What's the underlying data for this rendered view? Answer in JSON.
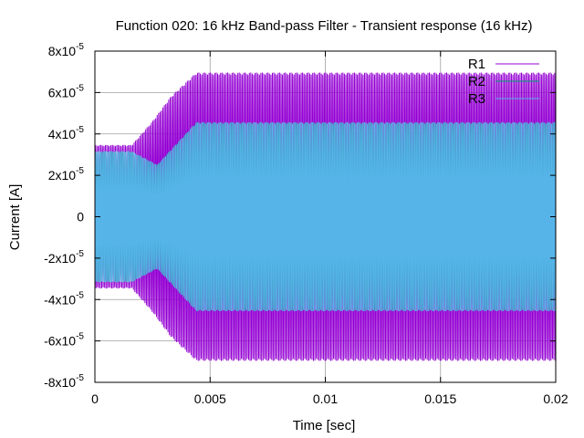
{
  "chart_data": {
    "type": "line",
    "title": "Function 020: 16 kHz Band-pass Filter - Transient response (16 kHz)",
    "xlabel": "Time [sec]",
    "ylabel": "Current [A]",
    "xlim": [
      0,
      0.02
    ],
    "ylim": [
      -8e-05,
      8e-05
    ],
    "x_ticks": [
      0,
      0.005,
      0.01,
      0.015,
      0.02
    ],
    "x_tick_labels": [
      "0",
      "0.005",
      "0.01",
      "0.015",
      "0.02"
    ],
    "y_ticks": [
      {
        "value": 8e-05,
        "mantissa": "8x10",
        "exp": "-5"
      },
      {
        "value": 6e-05,
        "mantissa": "6x10",
        "exp": "-5"
      },
      {
        "value": 4e-05,
        "mantissa": "4x10",
        "exp": "-5"
      },
      {
        "value": 2e-05,
        "mantissa": "2x10",
        "exp": "-5"
      },
      {
        "value": 0,
        "mantissa": "0",
        "exp": ""
      },
      {
        "value": -2e-05,
        "mantissa": "-2x10",
        "exp": "-5"
      },
      {
        "value": -4e-05,
        "mantissa": "-4x10",
        "exp": "-5"
      },
      {
        "value": -6e-05,
        "mantissa": "-6x10",
        "exp": "-5"
      },
      {
        "value": -8e-05,
        "mantissa": "-8x10",
        "exp": "-5"
      }
    ],
    "grid": true,
    "legend_position": "top-right",
    "frequency_hz": 16000,
    "series": [
      {
        "name": "R1",
        "color": "#9400d3",
        "envelope": {
          "t": [
            0,
            0.0016,
            0.0025,
            0.0033,
            0.0044,
            0.02
          ],
          "amp": [
            3.45e-05,
            3.45e-05,
            4.6e-05,
            5.8e-05,
            6.95e-05,
            6.95e-05
          ]
        }
      },
      {
        "name": "R2",
        "color": "#009e73",
        "envelope": {
          "t": [
            0,
            0.0016,
            0.0027,
            0.0044,
            0.02
          ],
          "amp": [
            3.15e-05,
            3.15e-05,
            2.5e-05,
            4.55e-05,
            4.55e-05
          ]
        }
      },
      {
        "name": "R3",
        "color": "#56b4e9",
        "envelope": {
          "t": [
            0,
            0.0016,
            0.0027,
            0.0044,
            0.02
          ],
          "amp": [
            3.15e-05,
            3.15e-05,
            2.5e-05,
            4.55e-05,
            4.55e-05
          ]
        }
      }
    ]
  }
}
